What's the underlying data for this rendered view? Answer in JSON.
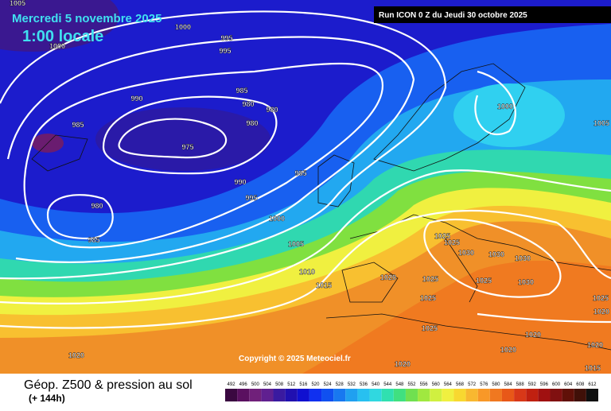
{
  "header": {
    "title": "Mercredi 5 novembre 2025",
    "time": "1:00 locale"
  },
  "run": "Run ICON 0 Z du Jeudi 30 octobre 2025",
  "copyright": "Copyright © 2025 Meteociel.fr",
  "legend": {
    "title": "Géop. Z500 & pression au sol",
    "lead": "(+ 144h)",
    "scale": [
      492,
      496,
      500,
      504,
      508,
      512,
      516,
      520,
      524,
      528,
      532,
      536,
      540,
      544,
      548,
      552,
      556,
      560,
      564,
      568,
      572,
      576,
      580,
      584,
      588,
      592,
      596,
      600,
      604,
      608,
      612
    ],
    "colors": [
      "#3a0840",
      "#5a1060",
      "#70207a",
      "#602090",
      "#3a1aa0",
      "#2010b0",
      "#1010d0",
      "#1030f0",
      "#1050f0",
      "#1878f0",
      "#20a0f0",
      "#28c0f0",
      "#30d8e0",
      "#30e0b0",
      "#40e080",
      "#70e050",
      "#a0e840",
      "#d0f040",
      "#f0f040",
      "#f8d830",
      "#f8b830",
      "#f89828",
      "#f07820",
      "#e85818",
      "#d83818",
      "#c02010",
      "#a01010",
      "#801010",
      "#601008",
      "#401008",
      "#101010"
    ]
  },
  "isobars": [
    1005,
    1000,
    1000,
    995,
    995,
    990,
    985,
    985,
    980,
    980,
    980,
    975,
    985,
    990,
    995,
    1000,
    980,
    985,
    1005,
    1010,
    1015,
    1020,
    1025,
    1025,
    1030,
    1030,
    1030,
    1025,
    1025,
    1030,
    1025,
    1000,
    1005,
    1025,
    1020,
    1020,
    1020,
    1020,
    1015,
    1020,
    1020,
    1025
  ]
}
